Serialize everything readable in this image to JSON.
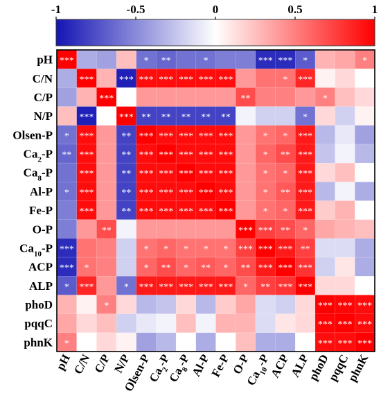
{
  "chart_data": {
    "type": "heatmap",
    "title": "",
    "xlabel": "",
    "ylabel": "",
    "grid": true,
    "colorbar": {
      "min": -1,
      "max": 1,
      "ticks": [
        -1,
        -0.5,
        0,
        0.5,
        1
      ],
      "tick_labels": [
        "-1",
        "-0.5",
        "0",
        "0.5",
        "1"
      ],
      "placement": "top",
      "colors": {
        "negative": "#1414b4",
        "zero": "#ffffff",
        "positive": "#ff0000"
      }
    },
    "row_labels": [
      [
        "pH",
        ""
      ],
      [
        "C/N",
        ""
      ],
      [
        "C/P",
        ""
      ],
      [
        "N/P",
        ""
      ],
      [
        "Olsen-P",
        ""
      ],
      [
        "Ca",
        "2",
        "-P"
      ],
      [
        "Ca",
        "8",
        "-P"
      ],
      [
        "Al-P",
        ""
      ],
      [
        "Fe-P",
        ""
      ],
      [
        "O-P",
        ""
      ],
      [
        "Ca",
        "10",
        "-P"
      ],
      [
        "ACP",
        ""
      ],
      [
        "ALP",
        ""
      ],
      [
        "phoD",
        ""
      ],
      [
        "pqqC",
        ""
      ],
      [
        "phnK",
        ""
      ]
    ],
    "col_labels": [
      [
        "pH",
        ""
      ],
      [
        "C/N",
        ""
      ],
      [
        "C/P",
        ""
      ],
      [
        "N/P",
        ""
      ],
      [
        "Olsen-P",
        ""
      ],
      [
        "Ca",
        "2",
        "-P"
      ],
      [
        "Ca",
        "8",
        "-P"
      ],
      [
        "Al-P",
        ""
      ],
      [
        "Fe-P",
        ""
      ],
      [
        "O-P",
        ""
      ],
      [
        "Ca",
        "10",
        "-P"
      ],
      [
        "ACP",
        ""
      ],
      [
        "ALP",
        ""
      ],
      [
        "phoD",
        ""
      ],
      [
        "pqqC",
        ""
      ],
      [
        "phnK",
        ""
      ]
    ],
    "values": [
      [
        1.0,
        -0.35,
        -0.4,
        0.25,
        -0.6,
        -0.65,
        -0.6,
        -0.6,
        -0.55,
        -0.55,
        -0.9,
        -0.9,
        -0.7,
        0.3,
        0.35,
        0.5
      ],
      [
        -0.35,
        1.0,
        0.3,
        -0.95,
        0.95,
        0.95,
        0.95,
        0.95,
        0.95,
        0.4,
        0.55,
        0.55,
        0.85,
        0.05,
        0.15,
        0.0
      ],
      [
        -0.4,
        0.3,
        1.0,
        0.0,
        0.4,
        0.4,
        0.4,
        0.4,
        0.4,
        0.7,
        0.5,
        0.5,
        0.4,
        0.5,
        0.25,
        0.15
      ],
      [
        0.25,
        -0.95,
        0.0,
        1.0,
        -0.8,
        -0.8,
        -0.8,
        -0.8,
        -0.8,
        -0.05,
        -0.2,
        -0.2,
        -0.6,
        0.15,
        -0.2,
        0.05
      ],
      [
        -0.6,
        0.95,
        0.4,
        -0.8,
        1.0,
        0.95,
        0.95,
        0.95,
        0.95,
        0.4,
        0.55,
        0.6,
        0.9,
        -0.3,
        -0.1,
        -0.4
      ],
      [
        -0.65,
        0.95,
        0.4,
        -0.8,
        0.95,
        1.0,
        0.95,
        0.95,
        0.95,
        0.4,
        0.6,
        0.7,
        0.9,
        -0.25,
        -0.05,
        -0.3
      ],
      [
        -0.6,
        0.95,
        0.4,
        -0.8,
        0.95,
        0.95,
        1.0,
        0.95,
        0.95,
        0.4,
        0.55,
        0.6,
        0.9,
        0.15,
        0.25,
        0.0
      ],
      [
        -0.6,
        0.95,
        0.4,
        -0.8,
        0.95,
        0.95,
        0.95,
        1.0,
        0.95,
        0.4,
        0.55,
        0.65,
        0.9,
        -0.3,
        -0.05,
        -0.35
      ],
      [
        -0.55,
        0.95,
        0.4,
        -0.8,
        0.95,
        0.95,
        0.95,
        0.95,
        1.0,
        0.4,
        0.55,
        0.6,
        0.9,
        0.2,
        0.3,
        0.0
      ],
      [
        -0.55,
        0.4,
        0.7,
        -0.05,
        0.4,
        0.4,
        0.4,
        0.4,
        0.4,
        1.0,
        0.75,
        0.7,
        0.6,
        0.35,
        0.3,
        0.25
      ],
      [
        -0.9,
        0.55,
        0.5,
        -0.2,
        0.55,
        0.6,
        0.55,
        0.55,
        0.55,
        0.75,
        1.0,
        0.9,
        0.75,
        -0.15,
        -0.15,
        -0.35
      ],
      [
        -0.9,
        0.55,
        0.5,
        -0.2,
        0.6,
        0.7,
        0.6,
        0.65,
        0.6,
        0.7,
        0.9,
        1.0,
        0.8,
        -0.2,
        0.1,
        -0.35
      ],
      [
        -0.7,
        0.85,
        0.4,
        -0.6,
        0.9,
        0.9,
        0.9,
        0.9,
        0.9,
        0.6,
        0.75,
        0.8,
        1.0,
        0.15,
        0.15,
        0.0
      ],
      [
        0.3,
        0.05,
        0.5,
        0.15,
        -0.3,
        -0.25,
        0.15,
        -0.3,
        0.2,
        0.35,
        -0.15,
        -0.2,
        0.15,
        1.0,
        0.98,
        0.95
      ],
      [
        0.35,
        0.15,
        0.25,
        -0.2,
        -0.1,
        -0.05,
        0.25,
        -0.05,
        0.3,
        0.3,
        -0.15,
        0.1,
        0.15,
        0.98,
        1.0,
        0.95
      ],
      [
        0.5,
        0.0,
        0.15,
        0.05,
        -0.4,
        -0.3,
        0.0,
        -0.35,
        0.0,
        0.25,
        -0.35,
        -0.35,
        0.0,
        0.95,
        0.95,
        1.0
      ]
    ],
    "significance": [
      [
        "***",
        "",
        "",
        "",
        "*",
        "**",
        "",
        "*",
        "",
        "",
        "***",
        "***",
        "*",
        "",
        "",
        "*"
      ],
      [
        "",
        "***",
        "",
        "***",
        "***",
        "***",
        "***",
        "***",
        "***",
        "",
        "",
        "*",
        "***",
        "",
        "",
        ""
      ],
      [
        "",
        "",
        "***",
        "",
        "",
        "",
        "",
        "",
        "",
        "**",
        "",
        "",
        "",
        "*",
        "",
        ""
      ],
      [
        "",
        "***",
        "",
        "***",
        "**",
        "**",
        "**",
        "**",
        "**",
        "",
        "",
        "",
        "*",
        "",
        "",
        ""
      ],
      [
        "*",
        "***",
        "",
        "**",
        "***",
        "***",
        "***",
        "***",
        "***",
        "",
        "*",
        "*",
        "***",
        "",
        "",
        ""
      ],
      [
        "**",
        "***",
        "",
        "**",
        "***",
        "***",
        "***",
        "***",
        "***",
        "",
        "*",
        "**",
        "***",
        "",
        "",
        ""
      ],
      [
        "",
        "***",
        "",
        "**",
        "***",
        "***",
        "***",
        "***",
        "***",
        "",
        "*",
        "*",
        "***",
        "",
        "",
        ""
      ],
      [
        "*",
        "***",
        "",
        "**",
        "***",
        "***",
        "***",
        "***",
        "***",
        "",
        "*",
        "**",
        "***",
        "",
        "",
        ""
      ],
      [
        "",
        "***",
        "",
        "**",
        "***",
        "***",
        "***",
        "***",
        "***",
        "",
        "*",
        "*",
        "***",
        "",
        "",
        ""
      ],
      [
        "",
        "",
        "**",
        "",
        "",
        "",
        "",
        "",
        "",
        "***",
        "***",
        "**",
        "*",
        "",
        "",
        ""
      ],
      [
        "***",
        "",
        "",
        "",
        "*",
        "*",
        "*",
        "*",
        "*",
        "***",
        "***",
        "***",
        "**",
        "",
        "",
        ""
      ],
      [
        "***",
        "*",
        "",
        "",
        "*",
        "**",
        "*",
        "**",
        "*",
        "**",
        "***",
        "***",
        "***",
        "",
        "",
        ""
      ],
      [
        "*",
        "***",
        "",
        "*",
        "***",
        "***",
        "***",
        "***",
        "***",
        "*",
        "**",
        "***",
        "***",
        "",
        "",
        ""
      ],
      [
        "",
        "",
        "*",
        "",
        "",
        "",
        "",
        "",
        "",
        "",
        "",
        "",
        "",
        "***",
        "***",
        "***"
      ],
      [
        "",
        "",
        "",
        "",
        "",
        "",
        "",
        "",
        "",
        "",
        "",
        "",
        "",
        "***",
        "***",
        "***"
      ],
      [
        "*",
        "",
        "",
        "",
        "",
        "",
        "",
        "",
        "",
        "",
        "",
        "",
        "",
        "***",
        "***",
        "***"
      ]
    ]
  }
}
